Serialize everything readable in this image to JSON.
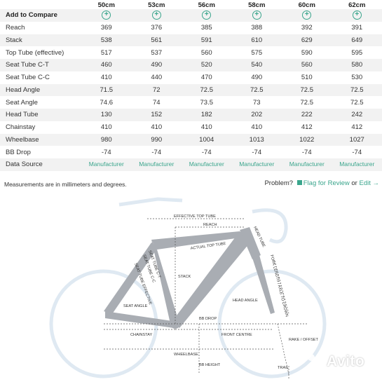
{
  "sizes": [
    "50cm",
    "53cm",
    "56cm",
    "58cm",
    "60cm",
    "62cm"
  ],
  "compare": {
    "label": "Add to Compare",
    "button": "+"
  },
  "rows": [
    {
      "label": "Reach",
      "values": [
        "369",
        "376",
        "385",
        "388",
        "392",
        "391"
      ]
    },
    {
      "label": "Stack",
      "values": [
        "538",
        "561",
        "591",
        "610",
        "629",
        "649"
      ]
    },
    {
      "label": "Top Tube (effective)",
      "values": [
        "517",
        "537",
        "560",
        "575",
        "590",
        "595"
      ]
    },
    {
      "label": "Seat Tube C-T",
      "values": [
        "460",
        "490",
        "520",
        "540",
        "560",
        "580"
      ]
    },
    {
      "label": "Seat Tube C-C",
      "values": [
        "410",
        "440",
        "470",
        "490",
        "510",
        "530"
      ]
    },
    {
      "label": "Head Angle",
      "values": [
        "71.5",
        "72",
        "72.5",
        "72.5",
        "72.5",
        "72.5"
      ]
    },
    {
      "label": "Seat Angle",
      "values": [
        "74.6",
        "74",
        "73.5",
        "73",
        "72.5",
        "72.5"
      ]
    },
    {
      "label": "Head Tube",
      "values": [
        "130",
        "152",
        "182",
        "202",
        "222",
        "242"
      ]
    },
    {
      "label": "Chainstay",
      "values": [
        "410",
        "410",
        "410",
        "410",
        "412",
        "412"
      ]
    },
    {
      "label": "Wheelbase",
      "values": [
        "980",
        "990",
        "1004",
        "1013",
        "1022",
        "1027"
      ]
    },
    {
      "label": "BB Drop",
      "values": [
        "-74",
        "-74",
        "-74",
        "-74",
        "-74",
        "-74"
      ]
    }
  ],
  "data_source": {
    "label": "Data Source",
    "values": [
      "Manufacturer",
      "Manufacturer",
      "Manufacturer",
      "Manufacturer",
      "Manufacturer",
      "Manufacturer"
    ]
  },
  "footer": {
    "note": "Measurements are in millimeters and degrees.",
    "problem": "Problem?",
    "flag": "Flag for Review",
    "or": "or",
    "edit": "Edit",
    "edit_arrow": "→"
  },
  "diagram": {
    "labels": {
      "effective_top_tube": "EFFECTIVE TOP TUBE",
      "reach": "REACH",
      "actual_top_tube": "ACTUAL TOP TUBE",
      "head_tube": "HEAD TUBE",
      "fork_length": "FORK LENGTH / AXLE TO CROWN",
      "seat_tube_ct": "SEAT TUBE C-T",
      "seat_tube_cc": "SEAT TUBE C-C",
      "seat_tube_effective": "SEAT TUBE EFFECTIVE",
      "stack": "STACK",
      "head_angle": "HEAD ANGLE",
      "seat_angle": "SEAT ANGLE",
      "bb_drop": "BB DROP",
      "chainstay": "CHAINSTAY",
      "front_centre": "FRONT CENTRE",
      "rake_offset": "RAKE / OFFSET",
      "wheelbase": "WHEELBASE",
      "trail": "TRAIL",
      "bb_height": "BB HEIGHT",
      "frame_text": "GEOMETRYGEEKS.BIKE"
    },
    "colors": {
      "frame": "#a9adb3",
      "ghost": "#dfe9f2",
      "dims": "#555555",
      "accent": "#3aa58c"
    }
  },
  "watermark": {
    "text": "Avito"
  }
}
